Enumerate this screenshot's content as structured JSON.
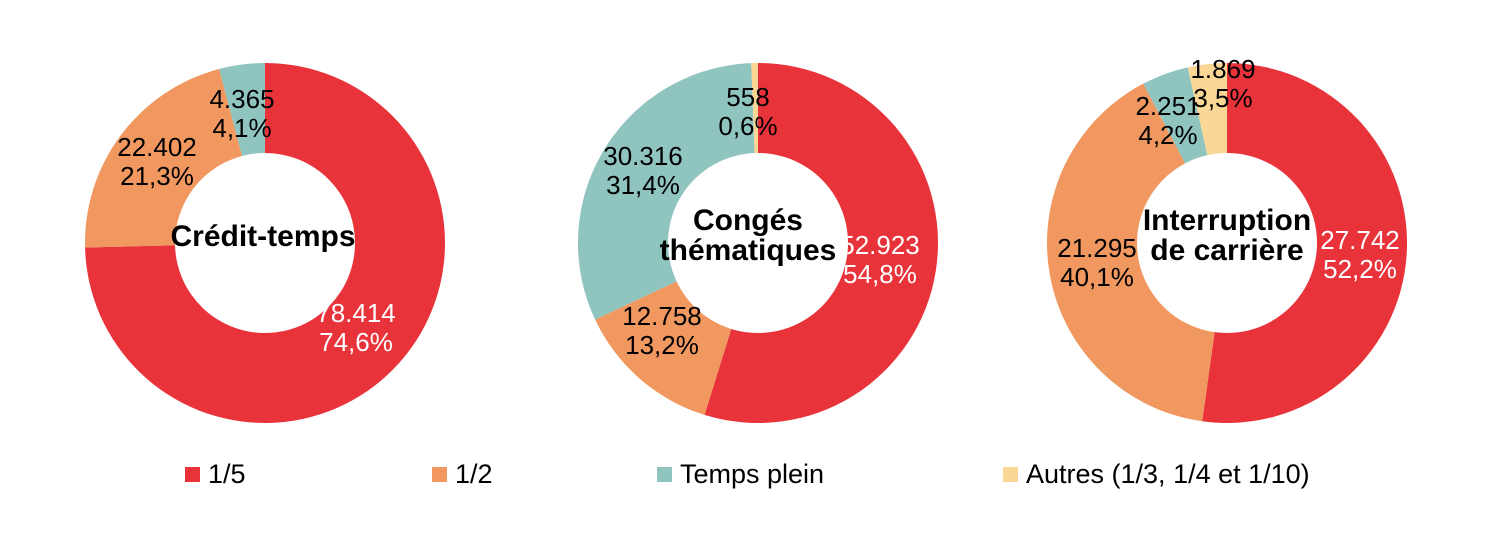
{
  "colors": {
    "red": "#E9333B",
    "orange": "#F0985F",
    "teal": "#8FC4BF",
    "yellow": "#FAD794",
    "label_dark": "#000000",
    "label_light": "#FFFFFF"
  },
  "legend": {
    "items": [
      {
        "label": "1/5",
        "color": "red"
      },
      {
        "label": "1/2",
        "color": "orange"
      },
      {
        "label": "Temps plein",
        "color": "teal"
      },
      {
        "label": "Autres (1/3, 1/4 et 1/10)",
        "color": "yellow"
      }
    ]
  },
  "chart_data": [
    {
      "type": "donut",
      "title": "Crédit-temps",
      "title_lines": [
        "Crédit-temps"
      ],
      "legend_position": "bottom",
      "categories": [
        "1/5",
        "1/2",
        "Temps plein"
      ],
      "segments": [
        {
          "category": "1/5",
          "value": 78414,
          "pct": 74.6,
          "display_value": "78.414",
          "display_pct": "74,6%",
          "color": "red",
          "label_color": "white"
        },
        {
          "category": "1/2",
          "value": 22402,
          "pct": 21.3,
          "display_value": "22.402",
          "display_pct": "21,3%",
          "color": "orange",
          "label_color": "black"
        },
        {
          "category": "Temps plein",
          "value": 4365,
          "pct": 4.1,
          "display_value": "4.365",
          "display_pct": "4,1%",
          "color": "teal",
          "label_color": "black"
        }
      ]
    },
    {
      "type": "donut",
      "title": "Congés thématiques",
      "title_lines": [
        "Congés",
        "thématiques"
      ],
      "legend_position": "bottom",
      "categories": [
        "1/5",
        "1/2",
        "Temps plein",
        "Autres (1/3, 1/4 et 1/10)"
      ],
      "segments": [
        {
          "category": "1/5",
          "value": 52923,
          "pct": 54.8,
          "display_value": "52.923",
          "display_pct": "54,8%",
          "color": "red",
          "label_color": "white"
        },
        {
          "category": "1/2",
          "value": 12758,
          "pct": 13.2,
          "display_value": "12.758",
          "display_pct": "13,2%",
          "color": "orange",
          "label_color": "black"
        },
        {
          "category": "Temps plein",
          "value": 30316,
          "pct": 31.4,
          "display_value": "30.316",
          "display_pct": "31,4%",
          "color": "teal",
          "label_color": "black"
        },
        {
          "category": "Autres (1/3, 1/4 et 1/10)",
          "value": 558,
          "pct": 0.6,
          "display_value": "558",
          "display_pct": "0,6%",
          "color": "yellow",
          "label_color": "black"
        }
      ]
    },
    {
      "type": "donut",
      "title": "Interruption de carrière",
      "title_lines": [
        "Interruption",
        "de carrière"
      ],
      "legend_position": "bottom",
      "categories": [
        "1/5",
        "1/2",
        "Temps plein",
        "Autres (1/3, 1/4 et 1/10)"
      ],
      "segments": [
        {
          "category": "1/5",
          "value": 27742,
          "pct": 52.2,
          "display_value": "27.742",
          "display_pct": "52,2%",
          "color": "red",
          "label_color": "white"
        },
        {
          "category": "1/2",
          "value": 21295,
          "pct": 40.1,
          "display_value": "21.295",
          "display_pct": "40,1%",
          "color": "orange",
          "label_color": "black"
        },
        {
          "category": "Temps plein",
          "value": 2251,
          "pct": 4.2,
          "display_value": "2.251",
          "display_pct": "4,2%",
          "color": "teal",
          "label_color": "black"
        },
        {
          "category": "Autres (1/3, 1/4 et 1/10)",
          "value": 1869,
          "pct": 3.5,
          "display_value": "1.869",
          "display_pct": "3,5%",
          "color": "yellow",
          "label_color": "black"
        }
      ]
    }
  ]
}
